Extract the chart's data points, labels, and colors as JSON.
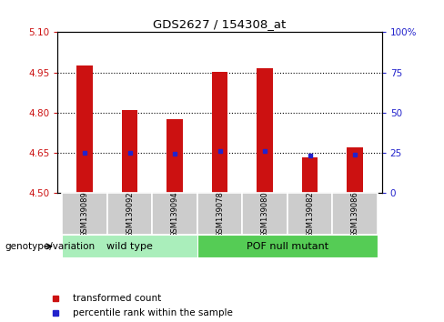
{
  "title": "GDS2627 / 154308_at",
  "samples": [
    "GSM139089",
    "GSM139092",
    "GSM139094",
    "GSM139078",
    "GSM139080",
    "GSM139082",
    "GSM139086"
  ],
  "bar_tops": [
    4.975,
    4.81,
    4.775,
    4.953,
    4.965,
    4.635,
    4.67
  ],
  "bar_bottom": 4.5,
  "percentile_values": [
    4.652,
    4.651,
    4.647,
    4.657,
    4.656,
    4.642,
    4.645
  ],
  "ylim": [
    4.5,
    5.1
  ],
  "yticks": [
    4.5,
    4.65,
    4.8,
    4.95,
    5.1
  ],
  "right_yticks": [
    0,
    25,
    50,
    75,
    100
  ],
  "bar_color": "#cc1111",
  "percentile_color": "#2222cc",
  "wild_type_color": "#aaeebb",
  "pof_color": "#55cc55",
  "tick_color_left": "#cc1111",
  "tick_color_right": "#2222cc",
  "legend_bar_label": "transformed count",
  "legend_pct_label": "percentile rank within the sample",
  "genotype_label": "genotype/variation",
  "wt_group": [
    0,
    1,
    2
  ],
  "pof_group": [
    3,
    4,
    5,
    6
  ]
}
